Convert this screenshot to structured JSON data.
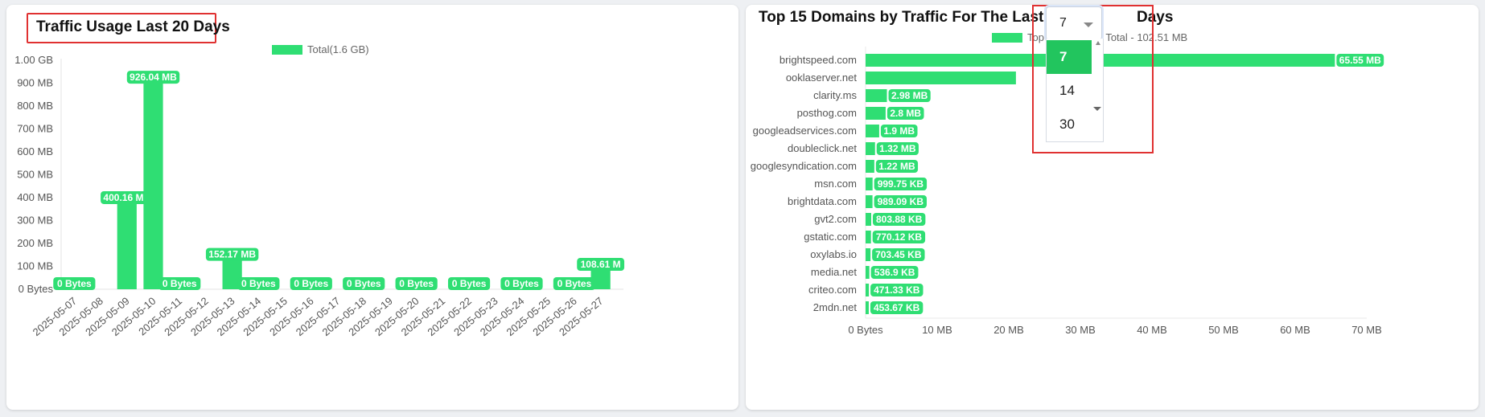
{
  "left_panel": {
    "title": "Traffic Usage Last 20 Days",
    "legend": "Total(1.6 GB)"
  },
  "right_panel": {
    "title_prefix": "Top 15 Domains by Traffic For The Last",
    "title_suffix": "Days",
    "legend": "Top 15 Domains Total - 102.51 MB",
    "days_select": {
      "value": "7",
      "options": [
        "7",
        "14",
        "30"
      ],
      "selected_index": 0
    }
  },
  "colors": {
    "bar": "#2fde73",
    "bar_dark": "#22c55e",
    "highlight": "#e03131"
  },
  "chart_data": [
    {
      "type": "bar",
      "title": "Traffic Usage Last 20 Days",
      "categories": [
        "2025-05-07",
        "2025-05-08",
        "2025-05-09",
        "2025-05-10",
        "2025-05-11",
        "2025-05-12",
        "2025-05-13",
        "2025-05-14",
        "2025-05-15",
        "2025-05-16",
        "2025-05-17",
        "2025-05-18",
        "2025-05-19",
        "2025-05-20",
        "2025-05-21",
        "2025-05-22",
        "2025-05-23",
        "2025-05-24",
        "2025-05-25",
        "2025-05-26",
        "2025-05-27"
      ],
      "series": [
        {
          "name": "Total(1.6 GB)",
          "values_mb": [
            0,
            null,
            400.16,
            926.04,
            0,
            null,
            152.17,
            0,
            null,
            0,
            null,
            0,
            null,
            0,
            null,
            0,
            null,
            0,
            null,
            0,
            108.61
          ],
          "labels": [
            "0 Bytes",
            null,
            "400.16 MB",
            "926.04 MB",
            "0 Bytes",
            null,
            "152.17 MB",
            "0 Bytes",
            null,
            "0 Bytes",
            null,
            "0 Bytes",
            null,
            "0 Bytes",
            null,
            "0 Bytes",
            null,
            "0 Bytes",
            null,
            "0 Bytes",
            "108.61 M"
          ]
        }
      ],
      "y_ticks": [
        "0 Bytes",
        "100 MB",
        "200 MB",
        "300 MB",
        "400 MB",
        "500 MB",
        "600 MB",
        "700 MB",
        "800 MB",
        "900 MB",
        "1.00 GB"
      ],
      "ylim_mb": [
        0,
        1000
      ],
      "legend": "top-center",
      "grid": "horizontal baseline only"
    },
    {
      "type": "bar",
      "orientation": "horizontal",
      "title": "Top 15 Domains by Traffic For The Last 7 Days",
      "categories": [
        "brightspeed.com",
        "ooklaserver.net",
        "clarity.ms",
        "posthog.com",
        "googleadservices.com",
        "doubleclick.net",
        "googlesyndication.com",
        "msn.com",
        "brightdata.com",
        "gvt2.com",
        "gstatic.com",
        "oxylabs.io",
        "media.net",
        "criteo.com",
        "2mdn.net"
      ],
      "series": [
        {
          "name": "Top 15 Domains Total - 102.51 MB",
          "values_mb": [
            65.55,
            21,
            2.98,
            2.8,
            1.9,
            1.32,
            1.22,
            0.976,
            0.966,
            0.785,
            0.752,
            0.687,
            0.524,
            0.46,
            0.443
          ],
          "labels": [
            "65.55 MB",
            "",
            "2.98 MB",
            "2.8 MB",
            "1.9 MB",
            "1.32 MB",
            "1.22 MB",
            "999.75 KB",
            "989.09 KB",
            "803.88 KB",
            "770.12 KB",
            "703.45 KB",
            "536.9 KB",
            "471.33 KB",
            "453.67 KB"
          ]
        }
      ],
      "x_ticks": [
        "0 Bytes",
        "10 MB",
        "20 MB",
        "30 MB",
        "40 MB",
        "50 MB",
        "60 MB",
        "70 MB"
      ],
      "xlim_mb": [
        0,
        70
      ],
      "legend": "top-center"
    }
  ]
}
